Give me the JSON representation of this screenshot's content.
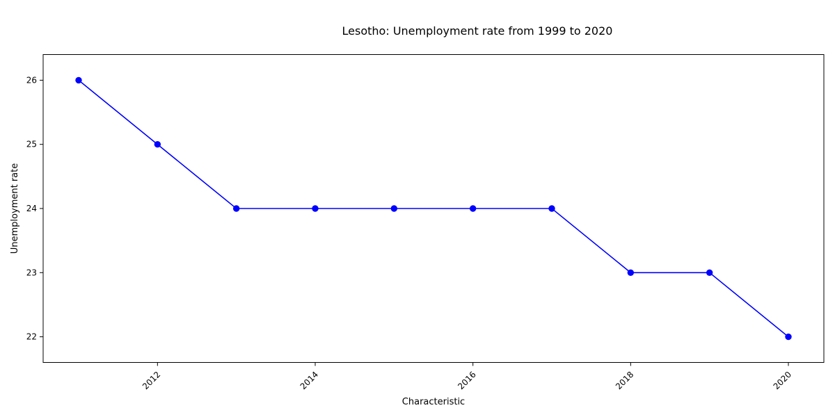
{
  "chart_data": {
    "type": "line",
    "title": "Lesotho: Unemployment rate from 1999 to 2020",
    "xlabel": "Characteristic",
    "ylabel": "Unemployment rate",
    "x": [
      2011,
      2012,
      2013,
      2014,
      2015,
      2016,
      2017,
      2018,
      2019,
      2020
    ],
    "series": [
      {
        "values": [
          26,
          25,
          24,
          24,
          24,
          24,
          24,
          23,
          23,
          22
        ],
        "color": "#0000ff",
        "marker": "circle"
      }
    ],
    "xlim": [
      2010.55,
      2020.45
    ],
    "ylim": [
      21.6,
      26.4
    ],
    "xticks": [
      "2012",
      "2014",
      "2016",
      "2018",
      "2020"
    ],
    "yticks": [
      "22",
      "23",
      "24",
      "25",
      "26"
    ],
    "grid": false,
    "legend": "none"
  }
}
